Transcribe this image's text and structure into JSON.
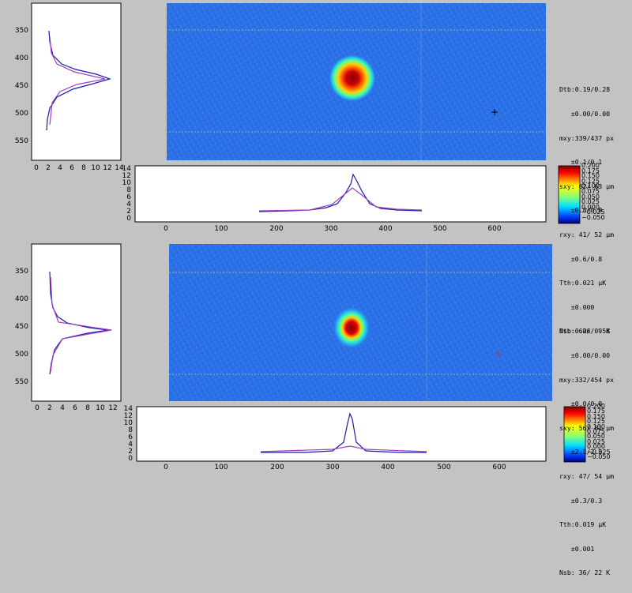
{
  "panels": [
    {
      "name": "top",
      "readout": [
        "Dtb:0.19/0.28",
        "   ±0.00/0.00",
        "mxy:339/437 px",
        "   ±0.1/0.1",
        "sxy: 62/ 63 µm",
        "   ±0.8/0.8",
        "rxy: 41/ 52 µm",
        "   ±0.6/0.8",
        "Tth:0.021 µK",
        "   ±0.000",
        "Nsb: 62/  9 K"
      ],
      "colorbar_ticks": [
        "0.200",
        "0.175",
        "0.150",
        "0.125",
        "0.100",
        "0.075",
        "0.050",
        "0.025",
        "0.000",
        "−0.025",
        "−0.050"
      ]
    },
    {
      "name": "bottom",
      "readout": [
        "Dtb:0.06/0.58",
        "   ±0.00/0.00",
        "mxy:332/454 px",
        "   ±0.0/0.0",
        "sxy: 56/ 61 µm",
        "   ±2.1/2.3",
        "rxy: 47/ 54 µm",
        "   ±0.3/0.3",
        "Tth:0.019 µK",
        "   ±0.001",
        "Nsb: 36/ 22 K"
      ],
      "colorbar_ticks": [
        "0.200",
        "0.175",
        "0.150",
        "0.125",
        "0.100",
        "0.075",
        "0.050",
        "0.025",
        "0.000",
        "−0.025",
        "−0.050"
      ]
    }
  ],
  "chart_data": [
    {
      "type": "line",
      "panel": "top",
      "plot": "vertical-profile",
      "orientation": "horizontal-values",
      "x_axis_ticks": [
        "0",
        "2",
        "4",
        "6",
        "8",
        "10",
        "12",
        "14"
      ],
      "y_axis_ticks": [
        "350",
        "400",
        "450",
        "500",
        "550"
      ],
      "xlim": [
        0,
        15
      ],
      "ylim": [
        585,
        300
      ],
      "series": [
        {
          "name": "",
          "color": "#1a1aaa",
          "points": [
            [
              2.1,
              350
            ],
            [
              2.4,
              370
            ],
            [
              3.0,
              395
            ],
            [
              4.5,
              410
            ],
            [
              7.0,
              420
            ],
            [
              10.5,
              428
            ],
            [
              12.8,
              437
            ],
            [
              10.0,
              445
            ],
            [
              6.5,
              455
            ],
            [
              3.8,
              470
            ],
            [
              2.6,
              490
            ],
            [
              2.2,
              510
            ],
            [
              2.0,
              530
            ]
          ]
        },
        {
          "name": "",
          "color": "#a040c0",
          "points": [
            [
              2.3,
              360
            ],
            [
              2.6,
              390
            ],
            [
              3.6,
              410
            ],
            [
              6.5,
              425
            ],
            [
              11.8,
              437
            ],
            [
              7.0,
              448
            ],
            [
              4.2,
              460
            ],
            [
              2.8,
              480
            ],
            [
              2.4,
              520
            ]
          ]
        }
      ]
    },
    {
      "type": "line",
      "panel": "top",
      "plot": "horizontal-profile",
      "x_axis_ticks": [
        "0",
        "100",
        "200",
        "300",
        "400",
        "500",
        "600"
      ],
      "y_axis_ticks": [
        "0",
        "2",
        "4",
        "6",
        "8",
        "10",
        "12",
        "14"
      ],
      "xlim": [
        -50,
        690
      ],
      "ylim": [
        -1,
        15
      ],
      "series": [
        {
          "name": "",
          "color": "#1a1aaa",
          "points": [
            [
              168,
              1.0
            ],
            [
              220,
              1.3
            ],
            [
              260,
              1.4
            ],
            [
              290,
              2.2
            ],
            [
              310,
              3.5
            ],
            [
              325,
              7.0
            ],
            [
              335,
              11.0
            ],
            [
              340,
              13.0
            ],
            [
              345,
              11.5
            ],
            [
              355,
              7.5
            ],
            [
              370,
              3.0
            ],
            [
              390,
              1.5
            ],
            [
              420,
              1.2
            ],
            [
              465,
              1.1
            ]
          ]
        },
        {
          "name": "",
          "color": "#a040c0",
          "points": [
            [
              168,
              1.2
            ],
            [
              260,
              1.5
            ],
            [
              300,
              3.0
            ],
            [
              322,
              6.5
            ],
            [
              338,
              9.5
            ],
            [
              355,
              6.5
            ],
            [
              380,
              2.5
            ],
            [
              420,
              1.4
            ],
            [
              465,
              1.2
            ]
          ]
        }
      ]
    },
    {
      "type": "heatmap",
      "panel": "top",
      "peak_xy": [
        339,
        437
      ],
      "colorbar_range": [
        -0.05,
        0.2
      ]
    },
    {
      "type": "line",
      "panel": "bottom",
      "plot": "vertical-profile",
      "orientation": "horizontal-values",
      "x_axis_ticks": [
        "0",
        "2",
        "4",
        "6",
        "8",
        "10",
        "12"
      ],
      "y_axis_ticks": [
        "350",
        "400",
        "450",
        "500",
        "550"
      ],
      "xlim": [
        0,
        13
      ],
      "ylim": [
        585,
        300
      ],
      "series": [
        {
          "name": "",
          "color": "#1a1aaa",
          "points": [
            [
              2.1,
              350
            ],
            [
              2.3,
              390
            ],
            [
              2.6,
              415
            ],
            [
              3.4,
              430
            ],
            [
              5.0,
              442
            ],
            [
              8.5,
              450
            ],
            [
              11.5,
              454
            ],
            [
              8.0,
              460
            ],
            [
              4.0,
              470
            ],
            [
              2.8,
              490
            ],
            [
              2.3,
              515
            ],
            [
              2.1,
              535
            ]
          ]
        },
        {
          "name": "",
          "color": "#a040c0",
          "points": [
            [
              2.3,
              360
            ],
            [
              2.5,
              410
            ],
            [
              3.5,
              440
            ],
            [
              12.0,
              454
            ],
            [
              4.0,
              470
            ],
            [
              2.6,
              500
            ],
            [
              2.3,
              530
            ]
          ]
        }
      ]
    },
    {
      "type": "line",
      "panel": "bottom",
      "plot": "horizontal-profile",
      "x_axis_ticks": [
        "0",
        "100",
        "200",
        "300",
        "400",
        "500",
        "600"
      ],
      "y_axis_ticks": [
        "0",
        "2",
        "4",
        "6",
        "8",
        "10",
        "12",
        "14"
      ],
      "xlim": [
        -50,
        690
      ],
      "ylim": [
        -1,
        15
      ],
      "series": [
        {
          "name": "",
          "color": "#1a1aaa",
          "points": [
            [
              170,
              1.0
            ],
            [
              250,
              1.1
            ],
            [
              300,
              1.4
            ],
            [
              320,
              4.0
            ],
            [
              328,
              10.0
            ],
            [
              332,
              12.0
            ],
            [
              336,
              10.5
            ],
            [
              344,
              4.0
            ],
            [
              360,
              1.4
            ],
            [
              420,
              1.1
            ],
            [
              470,
              1.0
            ]
          ]
        },
        {
          "name": "",
          "color": "#a040c0",
          "points": [
            [
              170,
              1.2
            ],
            [
              300,
              2.0
            ],
            [
              332,
              3.5
            ],
            [
              360,
              2.0
            ],
            [
              470,
              1.2
            ]
          ]
        }
      ]
    },
    {
      "type": "heatmap",
      "panel": "bottom",
      "peak_xy": [
        332,
        454
      ],
      "colorbar_range": [
        -0.05,
        0.2
      ]
    }
  ]
}
